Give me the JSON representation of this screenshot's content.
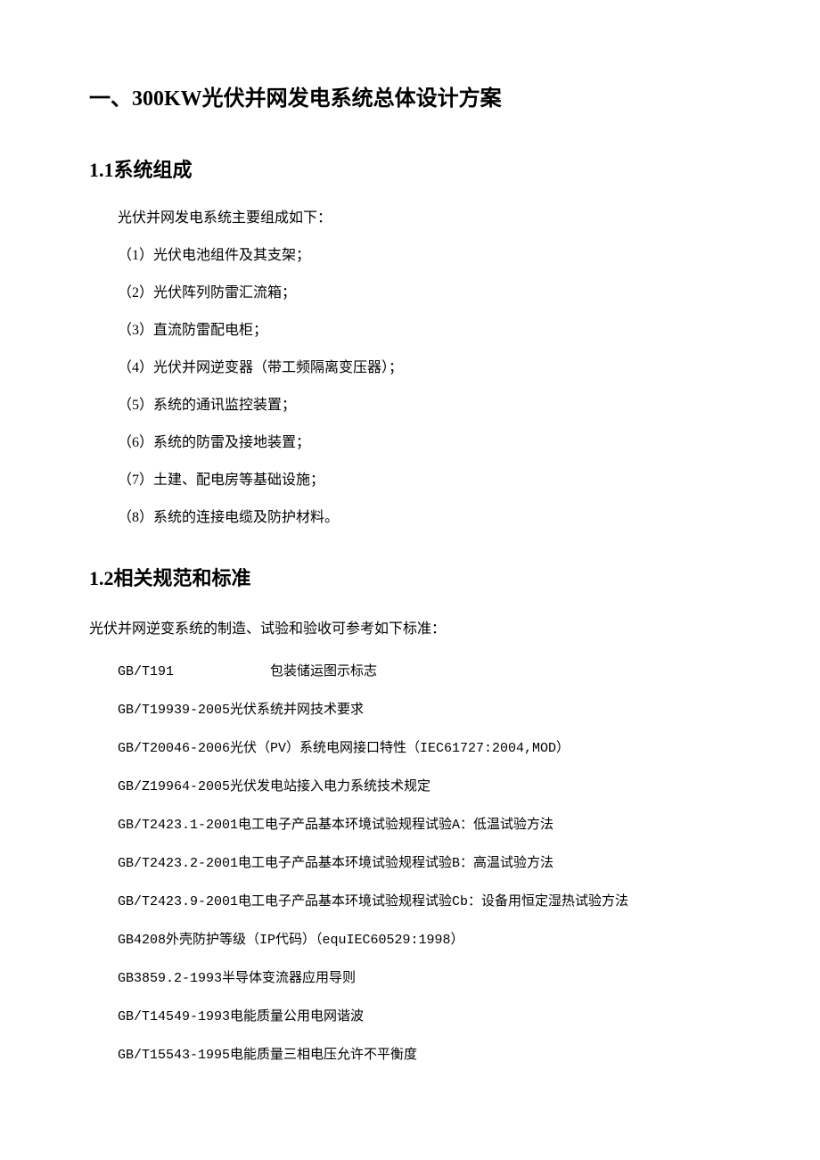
{
  "title": "一、300KW光伏并网发电系统总体设计方案",
  "section1": {
    "heading": "1.1系统组成",
    "intro": "光伏并网发电系统主要组成如下：",
    "items": [
      "（1）光伏电池组件及其支架；",
      "（2）光伏阵列防雷汇流箱；",
      "（3）直流防雷配电柜；",
      "（4）光伏并网逆变器（带工频隔离变压器）；",
      "（5）系统的通讯监控装置；",
      "（6）系统的防雷及接地装置；",
      "（7）土建、配电房等基础设施；",
      "（8）系统的连接电缆及防护材料。"
    ]
  },
  "section2": {
    "heading": "1.2相关规范和标准",
    "intro": "光伏并网逆变系统的制造、试验和验收可参考如下标准：",
    "standards": [
      "GB/T191            包装储运图示标志",
      "GB/T19939-2005光伏系统并网技术要求",
      "GB/T20046-2006光伏（PV）系统电网接口特性（IEC61727:2004,MOD）",
      "GB/Z19964-2005光伏发电站接入电力系统技术规定",
      "GB/T2423.1-2001电工电子产品基本环境试验规程试验A：低温试验方法",
      "GB/T2423.2-2001电工电子产品基本环境试验规程试验B：高温试验方法",
      "GB/T2423.9-2001电工电子产品基本环境试验规程试验Cb：设备用恒定湿热试验方法",
      "GB4208外壳防护等级（IP代码）（equIEC60529:1998）",
      "GB3859.2-1993半导体变流器应用导则",
      "GB/T14549-1993电能质量公用电网谐波",
      "GB/T15543-1995电能质量三相电压允许不平衡度"
    ]
  },
  "colors": {
    "text": "#000000",
    "background": "#ffffff"
  },
  "typography": {
    "h1_fontsize": 24,
    "h2_fontsize": 22,
    "body_fontsize": 16,
    "std_fontsize": 15,
    "font_family": "SimSun"
  }
}
